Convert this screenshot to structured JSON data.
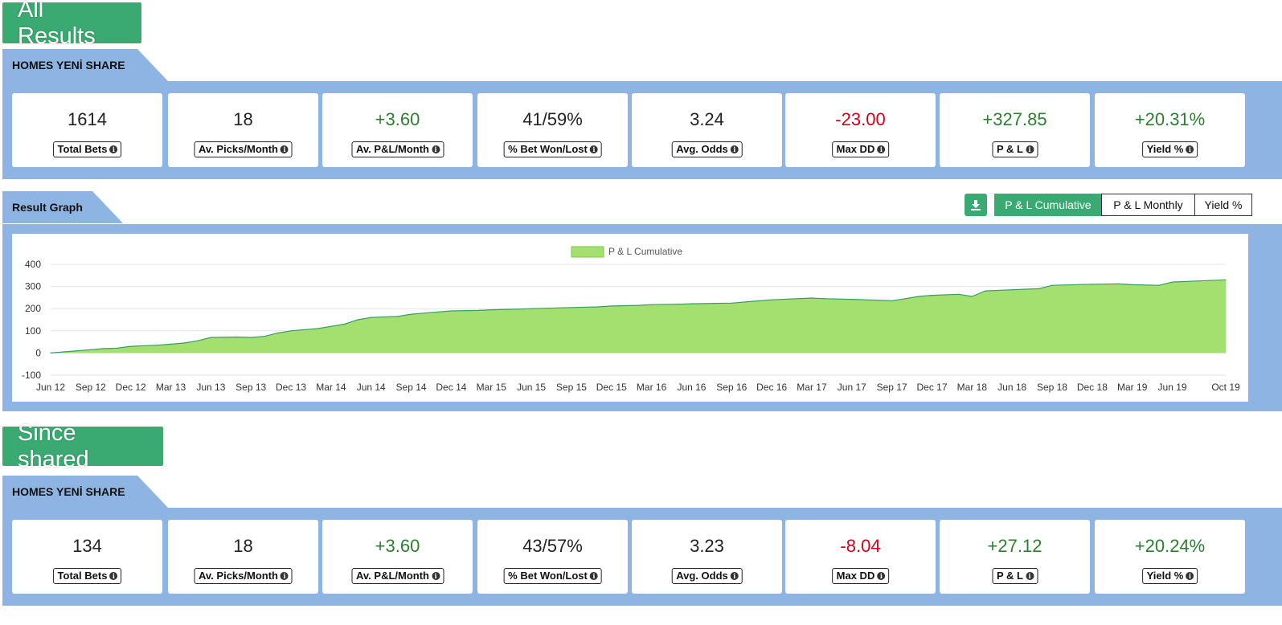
{
  "colors": {
    "brand_green": "#3aaa72",
    "panel_blue": "#8eb4e3",
    "positive": "#2e7d32",
    "negative": "#d0021b",
    "area_fill": "#a3e06f",
    "area_line": "#3a9a6a"
  },
  "all_results": {
    "heading": "All Results",
    "section_title": "HOMES YENİ SHARE",
    "stats": [
      {
        "value": "1614",
        "label": "Total Bets",
        "tone": "neutral"
      },
      {
        "value": "18",
        "label": "Av. Picks/Month",
        "tone": "neutral"
      },
      {
        "value": "+3.60",
        "label": "Av. P&L/Month",
        "tone": "pos"
      },
      {
        "value": "41/59%",
        "label": "% Bet Won/Lost",
        "tone": "neutral"
      },
      {
        "value": "3.24",
        "label": "Avg. Odds",
        "tone": "neutral"
      },
      {
        "value": "-23.00",
        "label": "Max DD",
        "tone": "neg"
      },
      {
        "value": "+327.85",
        "label": "P & L",
        "tone": "pos"
      },
      {
        "value": "+20.31%",
        "label": "Yield %",
        "tone": "pos"
      }
    ]
  },
  "graph": {
    "section_title": "Result Graph",
    "download_icon": "download-icon",
    "tabs": [
      {
        "label": "P & L Cumulative",
        "active": true
      },
      {
        "label": "P & L Monthly",
        "active": false
      },
      {
        "label": "Yield %",
        "active": false
      }
    ]
  },
  "since_shared": {
    "heading": "Since shared",
    "section_title": "HOMES YENİ SHARE",
    "stats": [
      {
        "value": "134",
        "label": "Total Bets",
        "tone": "neutral"
      },
      {
        "value": "18",
        "label": "Av. Picks/Month",
        "tone": "neutral"
      },
      {
        "value": "+3.60",
        "label": "Av. P&L/Month",
        "tone": "pos"
      },
      {
        "value": "43/57%",
        "label": "% Bet Won/Lost",
        "tone": "neutral"
      },
      {
        "value": "3.23",
        "label": "Avg. Odds",
        "tone": "neutral"
      },
      {
        "value": "-8.04",
        "label": "Max DD",
        "tone": "neg"
      },
      {
        "value": "+27.12",
        "label": "P & L",
        "tone": "pos"
      },
      {
        "value": "+20.24%",
        "label": "Yield %",
        "tone": "pos"
      }
    ]
  },
  "chart_data": {
    "type": "area",
    "legend": "P & L Cumulative",
    "legend_position": "top-center",
    "grid": true,
    "ylim": [
      -100,
      400
    ],
    "y_ticks": [
      400,
      300,
      200,
      100,
      0,
      -100
    ],
    "x_ticks": [
      "Jun 12",
      "Sep 12",
      "Dec 12",
      "Mar 13",
      "Jun 13",
      "Sep 13",
      "Dec 13",
      "Mar 14",
      "Jun 14",
      "Sep 14",
      "Dec 14",
      "Mar 15",
      "Jun 15",
      "Sep 15",
      "Dec 15",
      "Mar 16",
      "Jun 16",
      "Sep 16",
      "Dec 16",
      "Mar 17",
      "Jun 17",
      "Sep 17",
      "Dec 17",
      "Mar 18",
      "Jun 18",
      "Sep 18",
      "Dec 18",
      "Mar 19",
      "Jun 19",
      "Oct 19"
    ],
    "series": [
      {
        "name": "P & L Cumulative",
        "x": [
          "Jun 12",
          "Jul 12",
          "Sep 12",
          "Oct 12",
          "Nov 12",
          "Dec 12",
          "Feb 13",
          "Mar 13",
          "Apr 13",
          "May 13",
          "Jun 13",
          "Aug 13",
          "Sep 13",
          "Oct 13",
          "Nov 13",
          "Dec 13",
          "Feb 14",
          "Mar 14",
          "Apr 14",
          "May 14",
          "Jun 14",
          "Aug 14",
          "Sep 14",
          "Oct 14",
          "Dec 14",
          "Feb 15",
          "Mar 15",
          "May 15",
          "Jun 15",
          "Sep 15",
          "Nov 15",
          "Dec 15",
          "Feb 16",
          "Mar 16",
          "May 16",
          "Jun 16",
          "Sep 16",
          "Nov 16",
          "Dec 16",
          "Mar 17",
          "Apr 17",
          "Jun 17",
          "Aug 17",
          "Sep 17",
          "Oct 17",
          "Nov 17",
          "Dec 17",
          "Feb 18",
          "Mar 18",
          "Apr 18",
          "Jun 18",
          "Aug 18",
          "Sep 18",
          "Dec 18",
          "Feb 19",
          "Mar 19",
          "May 19",
          "Jun 19",
          "Aug 19",
          "Oct 19"
        ],
        "values": [
          0,
          5,
          15,
          20,
          22,
          30,
          35,
          40,
          45,
          55,
          70,
          72,
          70,
          75,
          90,
          100,
          110,
          120,
          130,
          150,
          160,
          165,
          175,
          180,
          190,
          192,
          195,
          198,
          200,
          205,
          208,
          212,
          215,
          218,
          220,
          222,
          225,
          235,
          240,
          248,
          245,
          242,
          238,
          235,
          245,
          255,
          260,
          265,
          255,
          280,
          285,
          290,
          305,
          310,
          312,
          308,
          305,
          320,
          325,
          330
        ]
      }
    ]
  }
}
